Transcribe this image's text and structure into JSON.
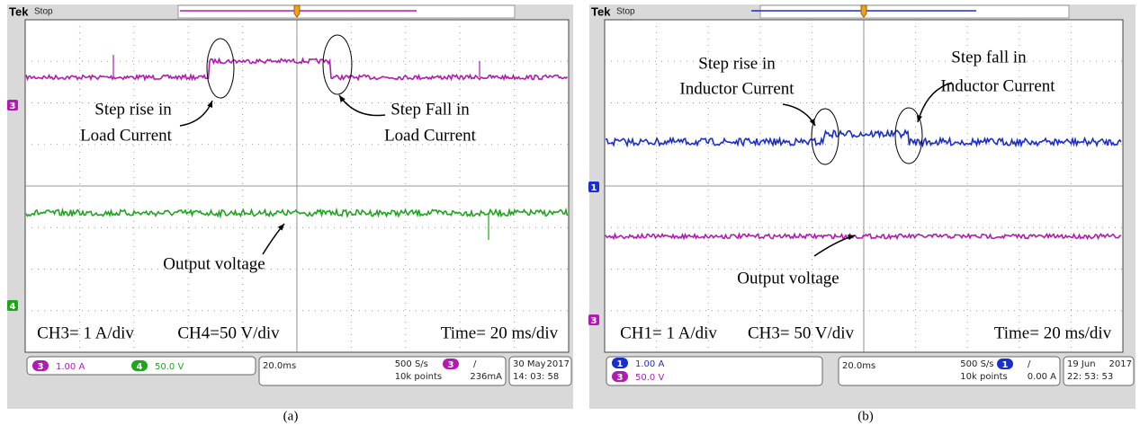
{
  "panels": [
    {
      "brand": "Tek",
      "state": "Stop",
      "markers": [
        "3",
        "4"
      ],
      "annotations": [
        "Step rise in",
        "Load Current",
        "Step Fall in",
        "Load Current",
        "Output voltage"
      ],
      "scale_labels": [
        "CH3= 1 A/div",
        "CH4=50 V/div",
        "Time= 20 ms/div"
      ],
      "status": {
        "ch_a_num": "3",
        "ch_a_val": "1.00 A",
        "ch_b_num": "4",
        "ch_b_val": "50.0 V",
        "timebase": "20.0ms",
        "sample_rate": "500 S/s",
        "record": "10k points",
        "trig_ch": "3",
        "trig_slope": "/",
        "trig_level": "236mA",
        "date": "30 May",
        "year": "2017",
        "time": "14: 03: 58"
      },
      "caption": "(a)"
    },
    {
      "brand": "Tek",
      "state": "Stop",
      "markers": [
        "1",
        "3"
      ],
      "annotations": [
        "Step rise in",
        "Inductor Current",
        "Step fall in",
        "Inductor Current",
        "Output voltage"
      ],
      "scale_labels": [
        "CH1= 1 A/div",
        "CH3= 50 V/div",
        "Time= 20 ms/div"
      ],
      "status": {
        "ch_a_num": "1",
        "ch_a_val": "1.00 A",
        "ch_b_num": "3",
        "ch_b_val": "50.0 V",
        "timebase": "20.0ms",
        "sample_rate": "500 S/s",
        "record": "10k points",
        "trig_ch": "1",
        "trig_slope": "/",
        "trig_level": "0.00 A",
        "date": "19 Jun",
        "year": "2017",
        "time": "22: 53: 53"
      },
      "caption": "(b)"
    }
  ]
}
